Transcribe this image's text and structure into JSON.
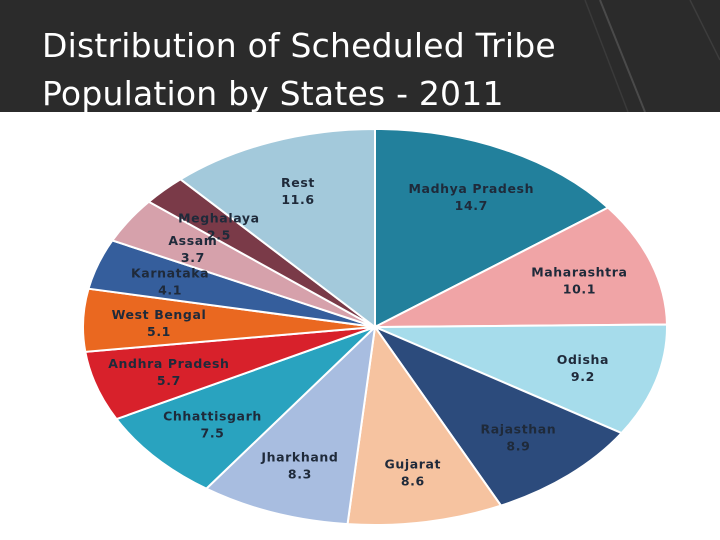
{
  "slide": {
    "title_line1": "Distribution of Scheduled Tribe",
    "title_line2": "Population by States - 2011"
  },
  "colors": {
    "background": "#2b2b2b",
    "panel": "#ffffff",
    "title": "#ffffff"
  },
  "chart_data": {
    "type": "pie",
    "title": "",
    "slices": [
      {
        "label": "Madhya Pradesh",
        "value": 14.7,
        "color": "#22809c"
      },
      {
        "label": "Maharashtra",
        "value": 10.1,
        "color": "#f0a4a6"
      },
      {
        "label": "Odisha",
        "value": 9.2,
        "color": "#a6dceb"
      },
      {
        "label": "Rajasthan",
        "value": 8.9,
        "color": "#2c4b7c"
      },
      {
        "label": "Gujarat",
        "value": 8.6,
        "color": "#f6c3a0"
      },
      {
        "label": "Jharkhand",
        "value": 8.3,
        "color": "#a8bde0"
      },
      {
        "label": "Chhattisgarh",
        "value": 7.5,
        "color": "#29a3bf"
      },
      {
        "label": "Andhra Pradesh",
        "value": 5.7,
        "color": "#d8212b"
      },
      {
        "label": "West Bengal",
        "value": 5.1,
        "color": "#ea6820"
      },
      {
        "label": "Karnataka",
        "value": 4.1,
        "color": "#355e9c"
      },
      {
        "label": "Assam",
        "value": 3.7,
        "color": "#d6a1ab"
      },
      {
        "label": "Meghalaya",
        "value": 2.5,
        "color": "#7a3a48"
      },
      {
        "label": "Rest",
        "value": 11.6,
        "color": "#a3c9db"
      }
    ],
    "start": "12 o'clock",
    "direction": "clockwise",
    "labels_inside": true
  }
}
